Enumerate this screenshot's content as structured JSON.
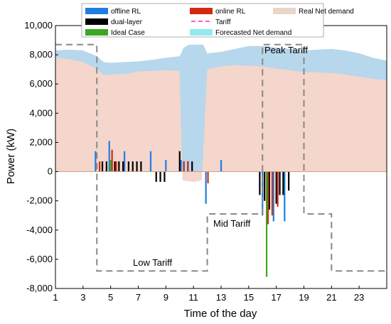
{
  "chart_data": {
    "type": "bar",
    "xlabel": "Time of the day",
    "ylabel": "Power (kW)",
    "xlim": [
      1,
      25
    ],
    "ylim": [
      -8000,
      10000
    ],
    "xticks": [
      1,
      3,
      5,
      7,
      9,
      11,
      13,
      15,
      17,
      19,
      21,
      23
    ],
    "xtick_labels": [
      "1",
      "3",
      "5",
      "7",
      "9",
      "11",
      "13",
      "15",
      "17",
      "19",
      "21",
      "23"
    ],
    "yticks": [
      -8000,
      -6000,
      -4000,
      -2000,
      0,
      2000,
      4000,
      6000,
      8000,
      10000
    ],
    "ytick_labels": [
      "-8,000",
      "-6,000",
      "-4,000",
      "-2,000",
      "0",
      "2,000",
      "4,000",
      "6,000",
      "8,000",
      "10,000"
    ],
    "grid": false,
    "legend_position": "top",
    "legend": [
      {
        "label": "offline RL",
        "color": "#1f7fe0",
        "kind": "box"
      },
      {
        "label": "online RL",
        "color": "#d62a10",
        "kind": "box"
      },
      {
        "label": "Real Net demand",
        "color": "#ead6c8",
        "kind": "box"
      },
      {
        "label": "dual-layer",
        "color": "#000000",
        "kind": "box"
      },
      {
        "label": "Tariff",
        "color": "#ee66cc",
        "kind": "dash"
      },
      {
        "label": "Ideal Case",
        "color": "#3aa822",
        "kind": "box"
      },
      {
        "label": "Forecasted Net demand",
        "color": "#90eaf2",
        "kind": "box"
      }
    ],
    "series": [
      {
        "name": "Forecasted Net demand",
        "color": "#b7d7ec",
        "x": [
          1,
          2,
          3,
          4,
          4.5,
          5,
          6,
          7,
          8,
          9,
          10,
          10.3,
          10.7,
          11,
          11.7,
          12,
          13,
          14,
          15,
          16,
          17,
          18,
          19,
          20,
          21,
          22,
          23,
          24,
          25
        ],
        "values": [
          8300,
          8350,
          8300,
          7900,
          7500,
          7450,
          7500,
          7550,
          7650,
          7800,
          7900,
          8500,
          8700,
          8700,
          8700,
          8100,
          8200,
          8400,
          8600,
          8600,
          8500,
          8400,
          8300,
          8350,
          8400,
          8300,
          8100,
          7800,
          7600
        ]
      },
      {
        "name": "Real Net demand",
        "color": "#f4d6cc",
        "x": [
          1,
          2,
          3,
          4,
          4.5,
          5,
          6,
          7,
          8,
          9,
          10,
          10.2,
          11,
          11.6,
          12,
          13,
          14,
          15,
          16,
          17,
          18,
          19,
          20,
          21,
          22,
          23,
          24,
          25
        ],
        "values": [
          7800,
          7700,
          7500,
          7050,
          6600,
          6650,
          6700,
          6850,
          6900,
          6950,
          6900,
          -600,
          -700,
          -600,
          7000,
          7200,
          7300,
          7250,
          7200,
          7050,
          6950,
          6800,
          6800,
          6750,
          6650,
          6500,
          6350,
          6250
        ]
      },
      {
        "name": "Tariff",
        "color": "#888888",
        "x": [
          1,
          4,
          4,
          12,
          12,
          16,
          16,
          19,
          19,
          21,
          21,
          25
        ],
        "values": [
          8700,
          8700,
          -6800,
          -6800,
          -2900,
          -2900,
          8700,
          8700,
          -2900,
          -2900,
          -6800,
          -6800
        ]
      },
      {
        "name": "offline RL",
        "color": "#1f7fe0",
        "bars": [
          [
            3.9,
            1400
          ],
          [
            4.9,
            2100
          ],
          [
            6.0,
            1400
          ],
          [
            7.9,
            1400
          ],
          [
            9.0,
            800
          ],
          [
            10.1,
            800
          ],
          [
            11.9,
            -2200
          ],
          [
            13.0,
            800
          ],
          [
            16.0,
            -3000
          ],
          [
            16.8,
            -3400
          ],
          [
            17.6,
            -3400
          ]
        ]
      },
      {
        "name": "online RL",
        "color": "#d62a10",
        "bars": [
          [
            4.2,
            700
          ],
          [
            5.1,
            1500
          ],
          [
            5.4,
            700
          ],
          [
            10.3,
            700
          ],
          [
            10.6,
            700
          ],
          [
            12.05,
            -800
          ],
          [
            16.4,
            -3600
          ],
          [
            16.7,
            -3000
          ],
          [
            17.1,
            -2400
          ]
        ]
      },
      {
        "name": "dual-layer",
        "color": "#000000",
        "bars": [
          [
            4.4,
            700
          ],
          [
            4.7,
            700
          ],
          [
            5.3,
            700
          ],
          [
            5.6,
            700
          ],
          [
            5.9,
            700
          ],
          [
            6.3,
            700
          ],
          [
            6.6,
            700
          ],
          [
            6.9,
            700
          ],
          [
            7.2,
            700
          ],
          [
            8.3,
            -700
          ],
          [
            8.6,
            -700
          ],
          [
            8.9,
            -700
          ],
          [
            10.0,
            1400
          ],
          [
            10.3,
            700
          ],
          [
            10.6,
            700
          ],
          [
            10.9,
            700
          ],
          [
            15.8,
            -1600
          ],
          [
            16.15,
            -2000
          ],
          [
            16.5,
            -2600
          ],
          [
            17.0,
            -2200
          ],
          [
            17.25,
            -1600
          ],
          [
            17.5,
            -1600
          ],
          [
            17.9,
            -1300
          ]
        ]
      },
      {
        "name": "Ideal Case",
        "color": "#3aa822",
        "bars": [
          [
            5.0,
            800
          ],
          [
            16.3,
            -7200
          ]
        ]
      }
    ],
    "annotations": [
      "Peak Tariff",
      "Mid Tariff",
      "Low Tariff"
    ]
  }
}
